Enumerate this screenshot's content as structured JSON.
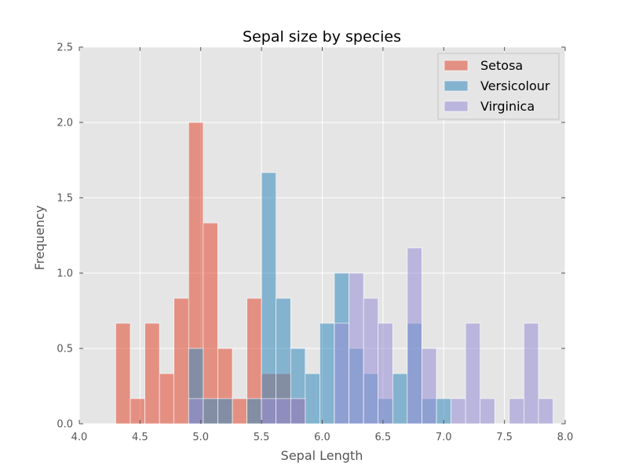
{
  "chart_data": {
    "type": "histogram",
    "title": "Sepal size by species",
    "xlabel": "Sepal Length",
    "ylabel": "Frequency",
    "xlim": [
      4.0,
      8.0
    ],
    "ylim": [
      0.0,
      2.5
    ],
    "xticks": [
      "4.0",
      "4.5",
      "5.0",
      "5.5",
      "6.0",
      "6.5",
      "7.0",
      "7.5",
      "8.0"
    ],
    "yticks": [
      "0.0",
      "0.5",
      "1.0",
      "1.5",
      "2.0",
      "2.5"
    ],
    "xtick_values": [
      4.0,
      4.5,
      5.0,
      5.5,
      6.0,
      6.5,
      7.0,
      7.5,
      8.0
    ],
    "ytick_values": [
      0.0,
      0.5,
      1.0,
      1.5,
      2.0,
      2.5
    ],
    "grid": true,
    "legend_position": "top-right",
    "colors": {
      "background": "#e5e5e5",
      "grid": "#ffffff",
      "tick": "#555555"
    },
    "series": [
      {
        "name": "Setosa",
        "color": "#e24a33",
        "alpha": 0.55,
        "bins": [
          {
            "x0": 4.3,
            "x1": 4.42,
            "y": 0.667
          },
          {
            "x0": 4.42,
            "x1": 4.54,
            "y": 0.167
          },
          {
            "x0": 4.54,
            "x1": 4.66,
            "y": 0.667
          },
          {
            "x0": 4.66,
            "x1": 4.78,
            "y": 0.333
          },
          {
            "x0": 4.78,
            "x1": 4.9,
            "y": 0.833
          },
          {
            "x0": 4.9,
            "x1": 5.02,
            "y": 2.0
          },
          {
            "x0": 5.02,
            "x1": 5.14,
            "y": 1.333
          },
          {
            "x0": 5.14,
            "x1": 5.26,
            "y": 0.5
          },
          {
            "x0": 5.26,
            "x1": 5.38,
            "y": 0.167
          },
          {
            "x0": 5.38,
            "x1": 5.5,
            "y": 0.833
          },
          {
            "x0": 5.5,
            "x1": 5.62,
            "y": 0.333
          },
          {
            "x0": 5.62,
            "x1": 5.74,
            "y": 0.333
          },
          {
            "x0": 5.74,
            "x1": 5.86,
            "y": 0.167
          }
        ]
      },
      {
        "name": "Versicolour",
        "color": "#348abd",
        "alpha": 0.55,
        "bins": [
          {
            "x0": 4.9,
            "x1": 5.02,
            "y": 0.5
          },
          {
            "x0": 5.02,
            "x1": 5.14,
            "y": 0.167
          },
          {
            "x0": 5.14,
            "x1": 5.26,
            "y": 0.167
          },
          {
            "x0": 5.38,
            "x1": 5.5,
            "y": 0.167
          },
          {
            "x0": 5.5,
            "x1": 5.62,
            "y": 1.667
          },
          {
            "x0": 5.62,
            "x1": 5.74,
            "y": 0.833
          },
          {
            "x0": 5.74,
            "x1": 5.86,
            "y": 0.5
          },
          {
            "x0": 5.86,
            "x1": 5.98,
            "y": 0.333
          },
          {
            "x0": 5.98,
            "x1": 6.1,
            "y": 0.667
          },
          {
            "x0": 6.1,
            "x1": 6.22,
            "y": 1.0
          },
          {
            "x0": 6.22,
            "x1": 6.34,
            "y": 0.5
          },
          {
            "x0": 6.34,
            "x1": 6.46,
            "y": 0.333
          },
          {
            "x0": 6.46,
            "x1": 6.58,
            "y": 0.167
          },
          {
            "x0": 6.58,
            "x1": 6.7,
            "y": 0.333
          },
          {
            "x0": 6.7,
            "x1": 6.82,
            "y": 0.667
          },
          {
            "x0": 6.82,
            "x1": 6.94,
            "y": 0.167
          },
          {
            "x0": 6.94,
            "x1": 7.06,
            "y": 0.167
          }
        ]
      },
      {
        "name": "Virginica",
        "color": "#988ed5",
        "alpha": 0.55,
        "bins": [
          {
            "x0": 4.9,
            "x1": 5.02,
            "y": 0.167
          },
          {
            "x0": 5.5,
            "x1": 5.62,
            "y": 0.167
          },
          {
            "x0": 5.62,
            "x1": 5.74,
            "y": 0.167
          },
          {
            "x0": 5.74,
            "x1": 5.86,
            "y": 0.167
          },
          {
            "x0": 6.1,
            "x1": 6.22,
            "y": 0.667
          },
          {
            "x0": 6.22,
            "x1": 6.34,
            "y": 1.0
          },
          {
            "x0": 6.34,
            "x1": 6.46,
            "y": 0.833
          },
          {
            "x0": 6.46,
            "x1": 6.58,
            "y": 0.667
          },
          {
            "x0": 6.7,
            "x1": 6.82,
            "y": 1.167
          },
          {
            "x0": 6.82,
            "x1": 6.94,
            "y": 0.5
          },
          {
            "x0": 7.06,
            "x1": 7.18,
            "y": 0.167
          },
          {
            "x0": 7.18,
            "x1": 7.3,
            "y": 0.667
          },
          {
            "x0": 7.3,
            "x1": 7.42,
            "y": 0.167
          },
          {
            "x0": 7.54,
            "x1": 7.66,
            "y": 0.167
          },
          {
            "x0": 7.66,
            "x1": 7.78,
            "y": 0.667
          },
          {
            "x0": 7.78,
            "x1": 7.9,
            "y": 0.167
          }
        ]
      }
    ]
  }
}
